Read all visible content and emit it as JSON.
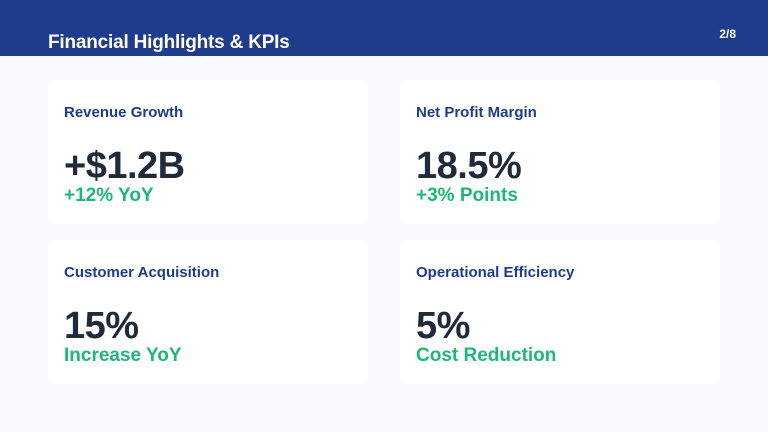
{
  "header": {
    "title": "Financial Highlights & KPIs",
    "page": "2/8"
  },
  "colors": {
    "header_bg": "#1f3b8c",
    "page_bg": "#f7f9fc",
    "card_bg": "#ffffff",
    "label": "#1f3b8c",
    "value": "#1f2a3a",
    "accent_green": "#1db877"
  },
  "kpis": [
    {
      "label": "Revenue Growth",
      "value": "+$1.2B",
      "sub": "+12% YoY"
    },
    {
      "label": "Net Profit Margin",
      "value": "18.5%",
      "sub": "+3% Points"
    },
    {
      "label": "Customer Acquisition",
      "value": "15%",
      "sub": "Increase YoY"
    },
    {
      "label": "Operational Efficiency",
      "value": "5%",
      "sub": "Cost Reduction"
    }
  ]
}
